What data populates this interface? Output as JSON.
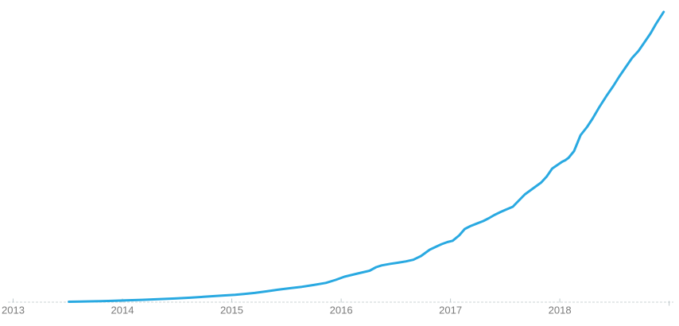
{
  "page": {
    "title": "",
    "background_color": "#ffffff"
  },
  "chart_data": {
    "type": "line",
    "title": "",
    "subtitle": "",
    "xlabel": "",
    "ylabel": "",
    "legend": false,
    "grid": false,
    "y_axis_visible": false,
    "x_domain": [
      2012.88,
      2019.09
    ],
    "y_domain": [
      0,
      365
    ],
    "line_color": "#29A9E1",
    "line_width": 3,
    "axis_color": "#CBD3D5",
    "tick_color": "#BFC9CC",
    "label_color": "#7B7B7B",
    "axis_extent": [
      10,
      847
    ],
    "x_ticks": [
      {
        "year": 2013,
        "label": "2013",
        "down": false
      },
      {
        "year": 2014,
        "label": "2014",
        "down": false
      },
      {
        "year": 2015,
        "label": "2015",
        "down": false
      },
      {
        "year": 2016,
        "label": "2016",
        "down": false
      },
      {
        "year": 2017,
        "label": "2017",
        "down": false
      },
      {
        "year": 2018,
        "label": "2018",
        "down": false
      },
      {
        "year": 2019,
        "label": "",
        "down": true
      }
    ],
    "series": [
      {
        "name": "",
        "points": [
          [
            2013.51,
            0.5
          ],
          [
            2013.62,
            0.8
          ],
          [
            2013.75,
            1.1
          ],
          [
            2013.9,
            1.6
          ],
          [
            2014.03,
            2.2
          ],
          [
            2014.18,
            2.9
          ],
          [
            2014.33,
            3.7
          ],
          [
            2014.48,
            4.6
          ],
          [
            2014.62,
            5.6
          ],
          [
            2014.77,
            7.0
          ],
          [
            2014.91,
            8.2
          ],
          [
            2015.03,
            9.3
          ],
          [
            2015.12,
            10.4
          ],
          [
            2015.21,
            11.6
          ],
          [
            2015.32,
            13.6
          ],
          [
            2015.42,
            15.6
          ],
          [
            2015.53,
            17.5
          ],
          [
            2015.64,
            19.3
          ],
          [
            2015.75,
            21.6
          ],
          [
            2015.86,
            24.2
          ],
          [
            2015.95,
            28.0
          ],
          [
            2016.03,
            32.0
          ],
          [
            2016.15,
            36.0
          ],
          [
            2016.26,
            39.5
          ],
          [
            2016.32,
            44.0
          ],
          [
            2016.37,
            46.2
          ],
          [
            2016.45,
            48.2
          ],
          [
            2016.52,
            49.6
          ],
          [
            2016.59,
            51.2
          ],
          [
            2016.66,
            53.3
          ],
          [
            2016.73,
            58.0
          ],
          [
            2016.81,
            66.0
          ],
          [
            2016.88,
            70.5
          ],
          [
            2016.92,
            73.0
          ],
          [
            2016.97,
            75.5
          ],
          [
            2017.02,
            77.2
          ],
          [
            2017.08,
            84.0
          ],
          [
            2017.13,
            92.0
          ],
          [
            2017.18,
            95.5
          ],
          [
            2017.24,
            98.8
          ],
          [
            2017.3,
            102.0
          ],
          [
            2017.35,
            105.5
          ],
          [
            2017.4,
            109.5
          ],
          [
            2017.46,
            113.5
          ],
          [
            2017.51,
            116.5
          ],
          [
            2017.57,
            120.0
          ],
          [
            2017.62,
            127.0
          ],
          [
            2017.68,
            135.5
          ],
          [
            2017.75,
            142.5
          ],
          [
            2017.83,
            150.5
          ],
          [
            2017.88,
            158.0
          ],
          [
            2017.93,
            168.0
          ],
          [
            2018.02,
            176.5
          ],
          [
            2018.05,
            178.5
          ],
          [
            2018.08,
            181.5
          ],
          [
            2018.13,
            190.0
          ],
          [
            2018.19,
            210.0
          ],
          [
            2018.25,
            220.5
          ],
          [
            2018.3,
            231.0
          ],
          [
            2018.36,
            245.0
          ],
          [
            2018.43,
            260.0
          ],
          [
            2018.49,
            272.0
          ],
          [
            2018.54,
            283.0
          ],
          [
            2018.6,
            295.0
          ],
          [
            2018.66,
            307.0
          ],
          [
            2018.72,
            316.0
          ],
          [
            2018.77,
            326.0
          ],
          [
            2018.83,
            338.0
          ],
          [
            2018.88,
            350.0
          ],
          [
            2018.95,
            365.0
          ]
        ]
      }
    ]
  }
}
